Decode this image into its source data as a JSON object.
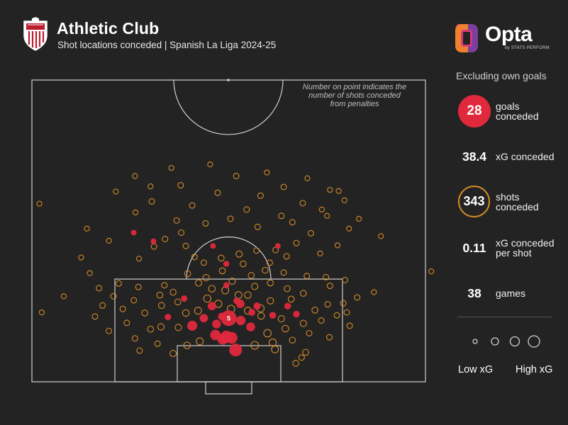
{
  "header": {
    "title": "Athletic Club",
    "subtitle": "Shot locations conceded | Spanish La Liga 2024-25"
  },
  "brand": {
    "name": "Opta",
    "tagline": "by STATS PERFORM",
    "logo_colors": [
      "#f0822e",
      "#d63a7c",
      "#7b3fa0"
    ]
  },
  "note": {
    "line1": "Number on point indicates the",
    "line2": "number of shots conceded",
    "line3": "from penalties"
  },
  "sidebar": {
    "excluding": "Excluding own goals",
    "stats": [
      {
        "value": "28",
        "label_line1": "goals conceded",
        "label_line2": ""
      },
      {
        "value": "38.4",
        "label_line1": "xG conceded",
        "label_line2": ""
      },
      {
        "value": "343",
        "label_line1": "shots conceded",
        "label_line2": ""
      },
      {
        "value": "0.11",
        "label_line1": "xG conceded",
        "label_line2": "per shot"
      },
      {
        "value": "38",
        "label_line1": "games",
        "label_line2": ""
      }
    ],
    "legend_low": "Low xG",
    "legend_high": "High xG"
  },
  "colors": {
    "background": "#232323",
    "goal": "#e0293d",
    "shot": "#d48a28",
    "pitch_lines": "#cfcfcf"
  },
  "chart_data": {
    "type": "scatter",
    "description_units": "x = distance from goal line in metres, y = lateral offset from goal centre in metres (positive = right of goal as viewed)",
    "penalty_label": "5",
    "goals": [
      {
        "x": 5.5,
        "y": 1.2,
        "xg": 0.45
      },
      {
        "x": 7.4,
        "y": -1.0,
        "xg": 0.32
      },
      {
        "x": 7.8,
        "y": -0.4,
        "xg": 0.38
      },
      {
        "x": 7.6,
        "y": 0.5,
        "xg": 0.36
      },
      {
        "x": 8.1,
        "y": -2.3,
        "xg": 0.25
      },
      {
        "x": 11.0,
        "y": 0.0,
        "xg": 0.79,
        "penalty": true
      },
      {
        "x": 11.0,
        "y": -4.3,
        "xg": 0.12
      },
      {
        "x": 10.6,
        "y": 2.1,
        "xg": 0.18
      },
      {
        "x": 9.7,
        "y": -6.3,
        "xg": 0.22
      },
      {
        "x": 10.0,
        "y": -2.1,
        "xg": 0.14
      },
      {
        "x": 13.1,
        "y": -2.9,
        "xg": 0.12
      },
      {
        "x": 13.5,
        "y": 2.0,
        "xg": 0.13
      },
      {
        "x": 13.1,
        "y": 4.9,
        "xg": 0.07
      },
      {
        "x": 9.5,
        "y": 3.8,
        "xg": 0.15
      },
      {
        "x": 11.3,
        "y": -1.2,
        "xg": 0.08
      },
      {
        "x": 12.0,
        "y": 4.0,
        "xg": 0.06
      },
      {
        "x": 14.0,
        "y": 1.4,
        "xg": 0.05
      },
      {
        "x": 14.4,
        "y": -7.7,
        "xg": 0.04
      },
      {
        "x": 13.1,
        "y": 10.2,
        "xg": 0.05
      },
      {
        "x": 11.5,
        "y": 7.6,
        "xg": 0.05
      },
      {
        "x": 11.7,
        "y": 11.7,
        "xg": 0.05
      },
      {
        "x": 11.2,
        "y": -10.5,
        "xg": 0.04
      },
      {
        "x": 16.7,
        "y": -0.4,
        "xg": 0.03
      },
      {
        "x": 20.4,
        "y": -0.4,
        "xg": 0.03
      },
      {
        "x": 23.5,
        "y": 8.5,
        "xg": 0.02
      },
      {
        "x": 23.5,
        "y": -2.7,
        "xg": 0.02
      },
      {
        "x": 25.8,
        "y": -16.4,
        "xg": 0.02
      },
      {
        "x": 24.3,
        "y": -13.0,
        "xg": 0.02
      }
    ],
    "shots": [
      {
        "x": 8.4,
        "y": 6.7,
        "xg": 0.08
      },
      {
        "x": 6.8,
        "y": 7.6,
        "xg": 0.07
      },
      {
        "x": 5.6,
        "y": 8.0,
        "xg": 0.06
      },
      {
        "x": 7.0,
        "y": -5.0,
        "xg": 0.06
      },
      {
        "x": 6.3,
        "y": 4.5,
        "xg": 0.09
      },
      {
        "x": 6.3,
        "y": -7.2,
        "xg": 0.05
      },
      {
        "x": 4.9,
        "y": -9.6,
        "xg": 0.04
      },
      {
        "x": 9.2,
        "y": 9.8,
        "xg": 0.05
      },
      {
        "x": 10.1,
        "y": 12.9,
        "xg": 0.04
      },
      {
        "x": 9.5,
        "y": -11.7,
        "xg": 0.04
      },
      {
        "x": 11.9,
        "y": -7.4,
        "xg": 0.05
      },
      {
        "x": 12.7,
        "y": 5.5,
        "xg": 0.07
      },
      {
        "x": 14.4,
        "y": -3.7,
        "xg": 0.07
      },
      {
        "x": 15.0,
        "y": 1.7,
        "xg": 0.06
      },
      {
        "x": 15.8,
        "y": -0.6,
        "xg": 0.06
      },
      {
        "x": 15.0,
        "y": 3.3,
        "xg": 0.05
      },
      {
        "x": 16.1,
        "y": -2.9,
        "xg": 0.05
      },
      {
        "x": 16.5,
        "y": 4.5,
        "xg": 0.04
      },
      {
        "x": 13.5,
        "y": -1.8,
        "xg": 0.07
      },
      {
        "x": 12.6,
        "y": 0.4,
        "xg": 0.08
      },
      {
        "x": 12.3,
        "y": -5.3,
        "xg": 0.06
      },
      {
        "x": 12.3,
        "y": 3.3,
        "xg": 0.06
      },
      {
        "x": 11.4,
        "y": 5.6,
        "xg": 0.05
      },
      {
        "x": 14.0,
        "y": 7.2,
        "xg": 0.04
      },
      {
        "x": 13.8,
        "y": -8.8,
        "xg": 0.03
      },
      {
        "x": 11.9,
        "y": -14.5,
        "xg": 0.03
      },
      {
        "x": 12.4,
        "y": 14.9,
        "xg": 0.03
      },
      {
        "x": 10.9,
        "y": 9.1,
        "xg": 0.04
      },
      {
        "x": 9.4,
        "y": -8.7,
        "xg": 0.04
      },
      {
        "x": 15.0,
        "y": -11.9,
        "xg": 0.03
      },
      {
        "x": 16.1,
        "y": 10.1,
        "xg": 0.03
      },
      {
        "x": 15.3,
        "y": 12.9,
        "xg": 0.03
      },
      {
        "x": 13.4,
        "y": 17.1,
        "xg": 0.02
      },
      {
        "x": 11.5,
        "y": 18.7,
        "xg": 0.02
      },
      {
        "x": 10.2,
        "y": -17.6,
        "xg": 0.02
      },
      {
        "x": 8.8,
        "y": -20.7,
        "xg": 0.02
      },
      {
        "x": 9.7,
        "y": 20.9,
        "xg": 0.02
      },
      {
        "x": 7.7,
        "y": 17.4,
        "xg": 0.02
      },
      {
        "x": 7.5,
        "y": -16.2,
        "xg": 0.02
      },
      {
        "x": 5.1,
        "y": 13.3,
        "xg": 0.03
      },
      {
        "x": 4.2,
        "y": 12.6,
        "xg": 0.02
      },
      {
        "x": 3.2,
        "y": 11.6,
        "xg": 0.03
      },
      {
        "x": 16.4,
        "y": -15.6,
        "xg": 0.02
      },
      {
        "x": 17.0,
        "y": -19.0,
        "xg": 0.02
      },
      {
        "x": 16.6,
        "y": 17.5,
        "xg": 0.02
      },
      {
        "x": 17.6,
        "y": 20.1,
        "xg": 0.02
      },
      {
        "x": 14.6,
        "y": 22.2,
        "xg": 0.02
      },
      {
        "x": 13.2,
        "y": -21.8,
        "xg": 0.02
      },
      {
        "x": 11.3,
        "y": -23.1,
        "xg": 0.02
      },
      {
        "x": 18.7,
        "y": -7.1,
        "xg": 0.03
      },
      {
        "x": 18.4,
        "y": 3.9,
        "xg": 0.03
      },
      {
        "x": 18.0,
        "y": -3.9,
        "xg": 0.04
      },
      {
        "x": 17.4,
        "y": 0.6,
        "xg": 0.04
      },
      {
        "x": 19.2,
        "y": -1.1,
        "xg": 0.03
      },
      {
        "x": 18.9,
        "y": 9.5,
        "xg": 0.02
      },
      {
        "x": 18.3,
        "y": 13.5,
        "xg": 0.02
      },
      {
        "x": 19.3,
        "y": 6.3,
        "xg": 0.03
      },
      {
        "x": 16.7,
        "y": -11.1,
        "xg": 0.02
      },
      {
        "x": 14.3,
        "y": 10.8,
        "xg": 0.03
      },
      {
        "x": 17.1,
        "y": 7.2,
        "xg": 0.03
      },
      {
        "x": 12.6,
        "y": -18.3,
        "xg": 0.02
      },
      {
        "x": 10.6,
        "y": 16.0,
        "xg": 0.02
      },
      {
        "x": 14.1,
        "y": -16.4,
        "xg": 0.02
      },
      {
        "x": 16.2,
        "y": -22.4,
        "xg": 0.02
      },
      {
        "x": 14.8,
        "y": -19.9,
        "xg": 0.02
      },
      {
        "x": 18.1,
        "y": 16.8,
        "xg": 0.02
      },
      {
        "x": 9.1,
        "y": -13.5,
        "xg": 0.03
      },
      {
        "x": 8.4,
        "y": 13.9,
        "xg": 0.02
      },
      {
        "x": 6.6,
        "y": -12.3,
        "xg": 0.02
      },
      {
        "x": 5.4,
        "y": -15.4,
        "xg": 0.02
      },
      {
        "x": 7.2,
        "y": 11.0,
        "xg": 0.03
      },
      {
        "x": 13.6,
        "y": 19.8,
        "xg": 0.02
      },
      {
        "x": 12.0,
        "y": 20.4,
        "xg": 0.02
      },
      {
        "x": 15.5,
        "y": -9.6,
        "xg": 0.03
      },
      {
        "x": 13.2,
        "y": -11.6,
        "xg": 0.03
      },
      {
        "x": 17.1,
        "y": -5.2,
        "xg": 0.04
      },
      {
        "x": 20.4,
        "y": 2.5,
        "xg": 0.03
      },
      {
        "x": 22.1,
        "y": 1.8,
        "xg": 0.04
      },
      {
        "x": 21.4,
        "y": -1.3,
        "xg": 0.03
      },
      {
        "x": 20.6,
        "y": -4.3,
        "xg": 0.02
      },
      {
        "x": 22.7,
        "y": 4.8,
        "xg": 0.02
      },
      {
        "x": 21.6,
        "y": -5.9,
        "xg": 0.02
      },
      {
        "x": 23.5,
        "y": -7.4,
        "xg": 0.02
      },
      {
        "x": 22.8,
        "y": 8.1,
        "xg": 0.02
      },
      {
        "x": 20.6,
        "y": 7.1,
        "xg": 0.02
      },
      {
        "x": 21.7,
        "y": 10.0,
        "xg": 0.02
      },
      {
        "x": 24.0,
        "y": 11.7,
        "xg": 0.02
      },
      {
        "x": 24.7,
        "y": -11.0,
        "xg": 0.02
      },
      {
        "x": 23.4,
        "y": -12.9,
        "xg": 0.02
      },
      {
        "x": 25.7,
        "y": 14.2,
        "xg": 0.02
      },
      {
        "x": 26.8,
        "y": 5.0,
        "xg": 0.02
      },
      {
        "x": 27.4,
        "y": -4.0,
        "xg": 0.02
      },
      {
        "x": 28.2,
        "y": 0.3,
        "xg": 0.02
      },
      {
        "x": 28.7,
        "y": 9.1,
        "xg": 0.02
      },
      {
        "x": 27.9,
        "y": -9.0,
        "xg": 0.02
      },
      {
        "x": 29.8,
        "y": 3.1,
        "xg": 0.02
      },
      {
        "x": 30.5,
        "y": -6.3,
        "xg": 0.02
      },
      {
        "x": 30.9,
        "y": 12.8,
        "xg": 0.02
      },
      {
        "x": 31.2,
        "y": -13.3,
        "xg": 0.02
      },
      {
        "x": 32.2,
        "y": 5.5,
        "xg": 0.02
      },
      {
        "x": 32.7,
        "y": -1.9,
        "xg": 0.02
      },
      {
        "x": 33.7,
        "y": 9.5,
        "xg": 0.02
      },
      {
        "x": 34.0,
        "y": -8.3,
        "xg": 0.02
      },
      {
        "x": 35.6,
        "y": 1.3,
        "xg": 0.02
      },
      {
        "x": 36.2,
        "y": 6.6,
        "xg": 0.01
      },
      {
        "x": 37.6,
        "y": -3.2,
        "xg": 0.01
      },
      {
        "x": 35.2,
        "y": 13.6,
        "xg": 0.01
      },
      {
        "x": 37.0,
        "y": -9.9,
        "xg": 0.01
      },
      {
        "x": 29.8,
        "y": 16.1,
        "xg": 0.01
      },
      {
        "x": 29.3,
        "y": -16.1,
        "xg": 0.01
      },
      {
        "x": 32.9,
        "y": -19.5,
        "xg": 0.01
      },
      {
        "x": 26.5,
        "y": 20.8,
        "xg": 0.01
      },
      {
        "x": 24.4,
        "y": -20.7,
        "xg": 0.01
      },
      {
        "x": 28.7,
        "y": 17.0,
        "xg": 0.01
      },
      {
        "x": 31.4,
        "y": 20.0,
        "xg": 0.01
      },
      {
        "x": 26.5,
        "y": -24.5,
        "xg": 0.01
      },
      {
        "x": 33.2,
        "y": 17.5,
        "xg": 0.01
      },
      {
        "x": 21.3,
        "y": -15.5,
        "xg": 0.01
      },
      {
        "x": 22.2,
        "y": 15.8,
        "xg": 0.01
      },
      {
        "x": 27.6,
        "y": 11.0,
        "xg": 0.02
      },
      {
        "x": 25.8,
        "y": -8.2,
        "xg": 0.02
      },
      {
        "x": 33.8,
        "y": -13.5,
        "xg": 0.01
      },
      {
        "x": 35.6,
        "y": -16.2,
        "xg": 0.01
      },
      {
        "x": 23.6,
        "y": 18.8,
        "xg": 0.01
      },
      {
        "x": 28.2,
        "y": 22.5,
        "xg": 0.01
      },
      {
        "x": 14.8,
        "y": -28.5,
        "xg": 0.01
      },
      {
        "x": 19.1,
        "y": 35.0,
        "xg": 0.01
      },
      {
        "x": 55.2,
        "y": 43.7,
        "xg": 0.01
      },
      {
        "x": 30.8,
        "y": -32.7,
        "xg": 0.01
      },
      {
        "x": 21.5,
        "y": -25.5,
        "xg": 0.01
      },
      {
        "x": 12.0,
        "y": -32.3,
        "xg": 0.01
      },
      {
        "x": 33.0,
        "y": 19.0,
        "xg": 0.01
      },
      {
        "x": 25.2,
        "y": 26.3,
        "xg": 0.01
      },
      {
        "x": 15.5,
        "y": 25.1,
        "xg": 0.01
      },
      {
        "x": 18.8,
        "y": -24.0,
        "xg": 0.01
      }
    ]
  }
}
